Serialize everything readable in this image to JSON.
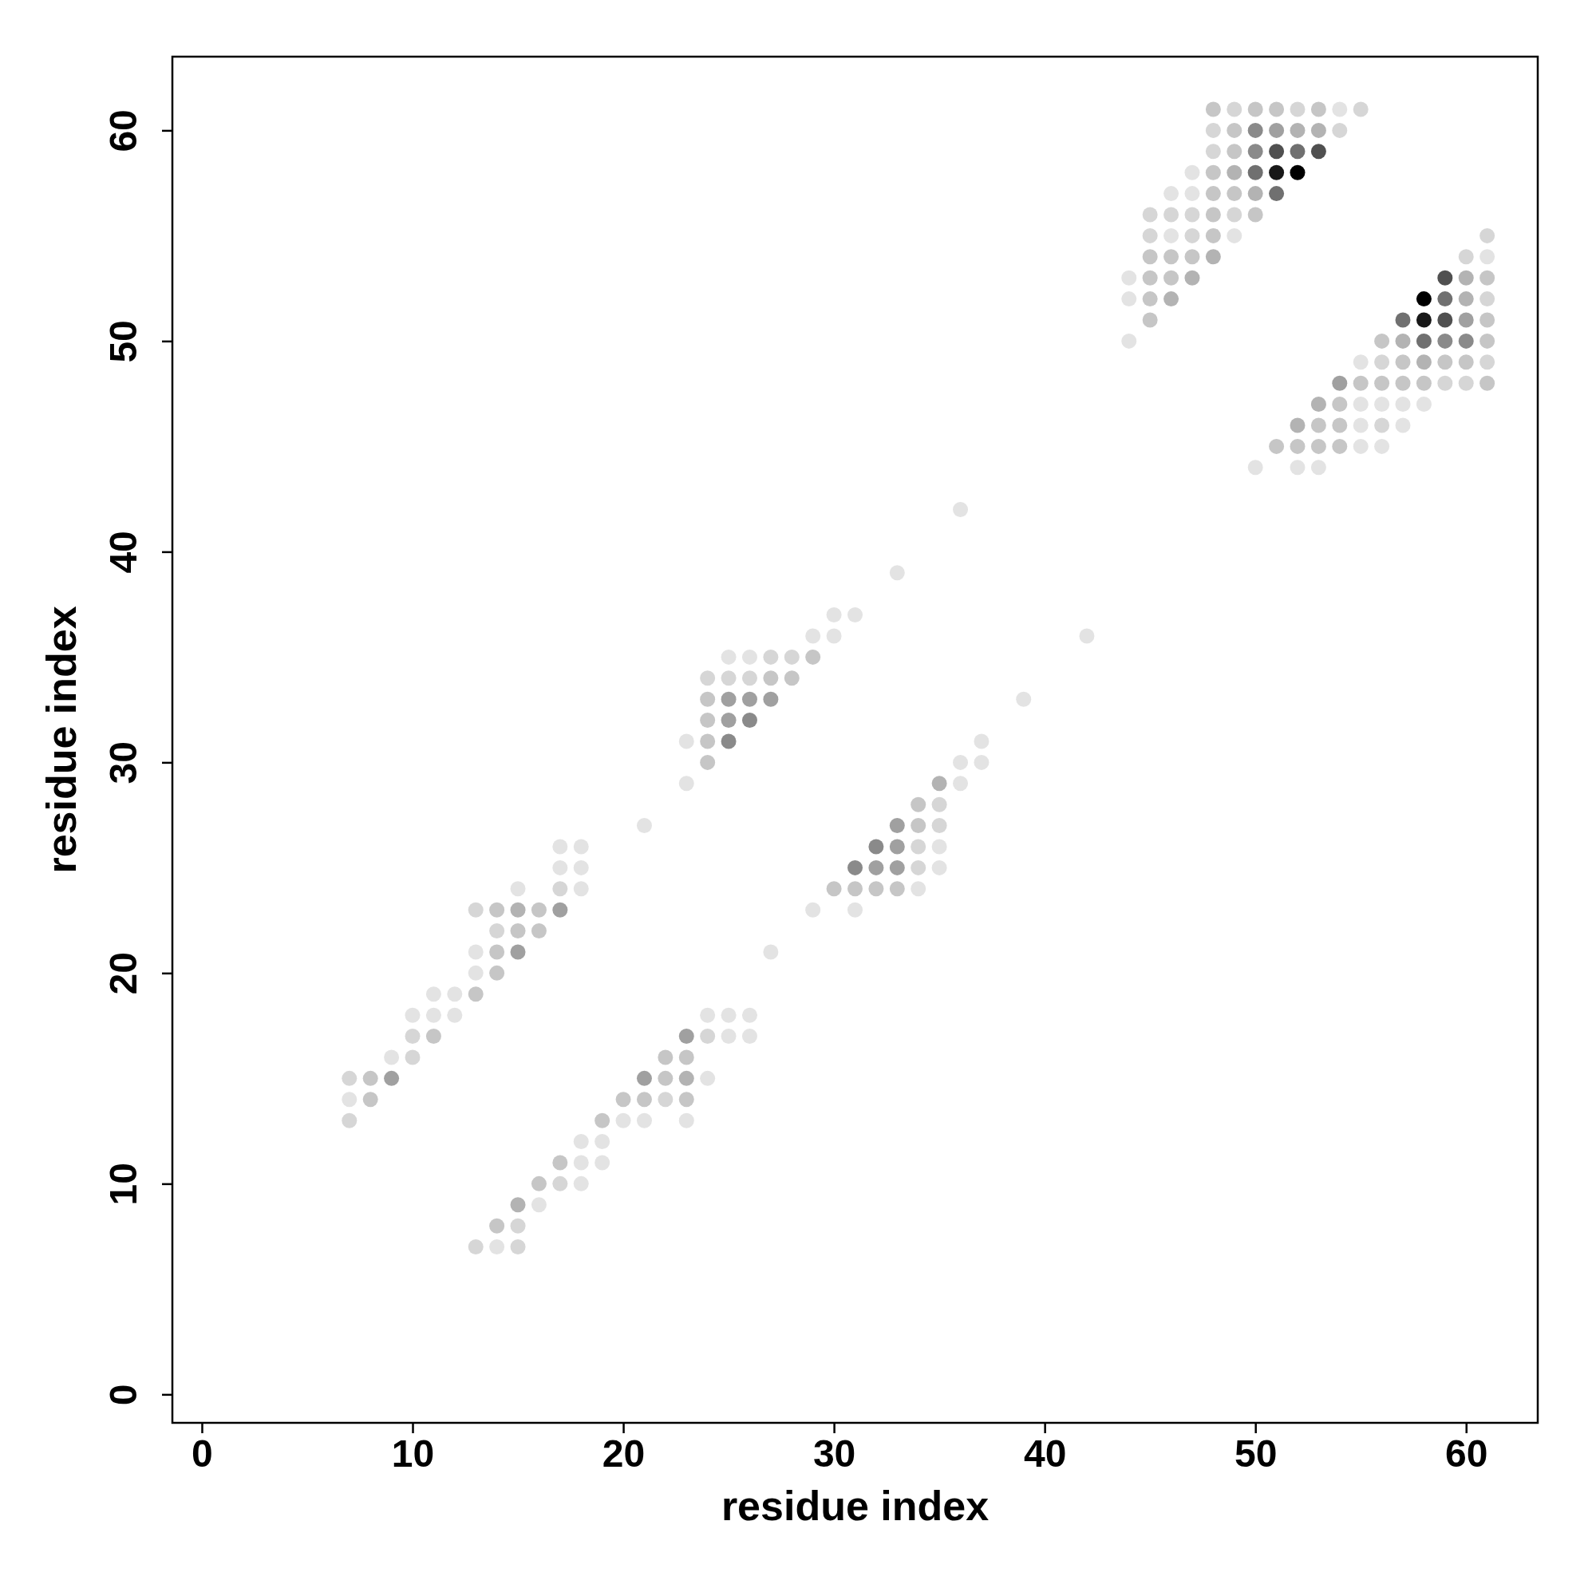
{
  "chart_data": {
    "type": "scatter",
    "xlabel": "residue index",
    "ylabel": "residue index",
    "xlim": [
      -1.4,
      63.4
    ],
    "ylim": [
      -1.35,
      63.5
    ],
    "xticks": [
      0,
      10,
      20,
      30,
      40,
      50,
      60
    ],
    "yticks": [
      0,
      10,
      20,
      30,
      40,
      50,
      60
    ],
    "grid": false,
    "marker": "circle",
    "series": [
      {
        "color": "#e3e3e3",
        "x": [
          54,
          47,
          46,
          47,
          46,
          49,
          44,
          44,
          44,
          61,
          55,
          55,
          56,
          57,
          58,
          55,
          57,
          55,
          56,
          50,
          52,
          53,
          36,
          33,
          30,
          31,
          29,
          30,
          42,
          25,
          26,
          39,
          23,
          37,
          36,
          37,
          23,
          36,
          21,
          35,
          17,
          18,
          35,
          17,
          18,
          34,
          15,
          18,
          29,
          31,
          27,
          13,
          13,
          11,
          12,
          10,
          11,
          12,
          24,
          25,
          26,
          25,
          26,
          9,
          24,
          7,
          20,
          21,
          23,
          18,
          19,
          18,
          19,
          18,
          16,
          14
        ],
        "values": [
          61,
          58,
          57,
          57,
          55,
          55,
          53,
          52,
          50,
          54,
          49,
          47,
          47,
          47,
          47,
          46,
          46,
          45,
          45,
          44,
          44,
          44,
          42,
          39,
          37,
          37,
          36,
          36,
          36,
          35,
          35,
          33,
          31,
          31,
          30,
          30,
          29,
          29,
          27,
          26,
          26,
          26,
          25,
          25,
          25,
          24,
          24,
          24,
          23,
          23,
          21,
          21,
          20,
          19,
          19,
          18,
          18,
          18,
          18,
          18,
          18,
          17,
          17,
          16,
          15,
          14,
          13,
          13,
          13,
          12,
          12,
          11,
          11,
          10,
          9,
          7
        ]
      },
      {
        "color": "#d6d6d6",
        "x": [
          49,
          52,
          55,
          48,
          54,
          48,
          45,
          46,
          47,
          49,
          45,
          47,
          61,
          60,
          61,
          56,
          61,
          59,
          60,
          56,
          27,
          28,
          24,
          25,
          26,
          35,
          35,
          34,
          34,
          17,
          13,
          14,
          10,
          24,
          10,
          7,
          22,
          7,
          17,
          15,
          13,
          15
        ],
        "values": [
          61,
          61,
          61,
          60,
          60,
          59,
          56,
          56,
          56,
          56,
          55,
          55,
          55,
          54,
          52,
          49,
          49,
          48,
          48,
          46,
          35,
          35,
          34,
          34,
          34,
          28,
          27,
          26,
          25,
          24,
          23,
          22,
          17,
          17,
          16,
          15,
          14,
          13,
          10,
          8,
          7,
          7
        ]
      },
      {
        "color": "#c6c6c6",
        "x": [
          48,
          50,
          51,
          53,
          49,
          49,
          48,
          48,
          49,
          48,
          50,
          48,
          45,
          46,
          47,
          45,
          46,
          45,
          45,
          61,
          61,
          56,
          61,
          57,
          59,
          60,
          55,
          56,
          57,
          58,
          61,
          54,
          53,
          54,
          51,
          52,
          53,
          54,
          29,
          27,
          28,
          24,
          24,
          24,
          24,
          34,
          34,
          30,
          31,
          32,
          33,
          14,
          16,
          15,
          16,
          14,
          14,
          13,
          11,
          22,
          23,
          8,
          22,
          8,
          20,
          21,
          23,
          19,
          17,
          16,
          14
        ],
        "values": [
          61,
          61,
          61,
          61,
          60,
          59,
          58,
          57,
          57,
          56,
          56,
          55,
          54,
          54,
          54,
          53,
          53,
          52,
          51,
          53,
          51,
          50,
          50,
          49,
          49,
          49,
          48,
          48,
          48,
          48,
          48,
          47,
          46,
          46,
          45,
          45,
          45,
          45,
          35,
          34,
          34,
          33,
          32,
          31,
          30,
          28,
          27,
          24,
          24,
          24,
          24,
          23,
          23,
          22,
          22,
          21,
          20,
          19,
          17,
          16,
          16,
          15,
          15,
          14,
          14,
          14,
          14,
          13,
          11,
          10,
          8
        ]
      },
      {
        "color": "#b3b3b3",
        "x": [
          52,
          53,
          49,
          50,
          48,
          47,
          46,
          60,
          60,
          57,
          58,
          53,
          52,
          35,
          15,
          23,
          15
        ],
        "values": [
          60,
          60,
          58,
          57,
          54,
          53,
          52,
          53,
          52,
          50,
          49,
          47,
          46,
          29,
          23,
          15,
          9
        ]
      },
      {
        "color": "#a0a0a0",
        "x": [
          51,
          60,
          54,
          25,
          26,
          27,
          25,
          33,
          33,
          32,
          33,
          17,
          15,
          23,
          9,
          21
        ],
        "values": [
          60,
          51,
          48,
          33,
          33,
          33,
          32,
          27,
          26,
          25,
          25,
          23,
          21,
          17,
          15,
          15
        ]
      },
      {
        "color": "#8a8a8a",
        "x": [
          50,
          50,
          59,
          60,
          26,
          25,
          32,
          31
        ],
        "values": [
          60,
          59,
          50,
          50,
          32,
          31,
          26,
          25
        ]
      },
      {
        "color": "#707070",
        "x": [
          52,
          50,
          51,
          59,
          57,
          58
        ],
        "values": [
          59,
          58,
          57,
          52,
          51,
          50
        ]
      },
      {
        "color": "#505050",
        "x": [
          51,
          53,
          59,
          59
        ],
        "values": [
          59,
          59,
          53,
          51
        ]
      },
      {
        "color": "#181818",
        "x": [
          51,
          58
        ],
        "values": [
          58,
          51
        ]
      },
      {
        "color": "#000000",
        "x": [
          52,
          58
        ],
        "values": [
          58,
          52
        ]
      }
    ]
  }
}
